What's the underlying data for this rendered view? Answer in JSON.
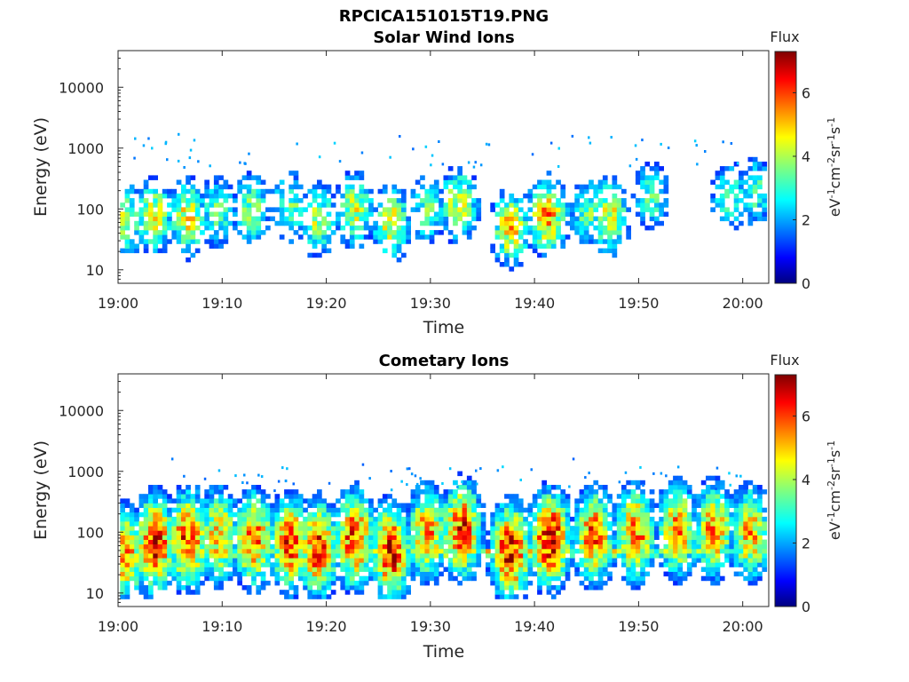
{
  "figure": {
    "title": "RPCICA151015T19.PNG"
  },
  "chart_data": [
    {
      "type": "heatmap",
      "title": "Solar Wind Ions",
      "xlabel": "Time",
      "ylabel": "Energy (eV)",
      "y_scale": "log",
      "ylim": [
        6,
        40000
      ],
      "xlim": [
        "19:00",
        "20:02"
      ],
      "x_ticks": [
        "19:00",
        "19:10",
        "19:20",
        "19:30",
        "19:40",
        "19:50",
        "20:00"
      ],
      "y_ticks": [
        "10",
        "100",
        "1000",
        "10000"
      ],
      "colorbar": {
        "label": "Flux",
        "units": "eV-1cm-2sr-1s-1",
        "range": [
          0,
          7.3
        ],
        "ticks": [
          "0",
          "2",
          "4",
          "6"
        ],
        "colormap": "jet"
      },
      "bursts": [
        {
          "t": 0.5,
          "e": 60,
          "level": 4.2
        },
        {
          "t": 3.2,
          "e": 70,
          "level": 4.6
        },
        {
          "t": 6.5,
          "e": 65,
          "level": 4.8
        },
        {
          "t": 9.3,
          "e": 80,
          "level": 3.6
        },
        {
          "t": 12.6,
          "e": 90,
          "level": 3.8
        },
        {
          "t": 16.3,
          "e": 100,
          "level": 3.7
        },
        {
          "t": 19.0,
          "e": 60,
          "level": 4.1
        },
        {
          "t": 22.5,
          "e": 90,
          "level": 4.4
        },
        {
          "t": 26.0,
          "e": 55,
          "level": 4.6
        },
        {
          "t": 29.5,
          "e": 90,
          "level": 3.5
        },
        {
          "t": 32.5,
          "e": 110,
          "level": 4.5
        },
        {
          "t": 37.5,
          "e": 45,
          "level": 5.0
        },
        {
          "t": 41.0,
          "e": 70,
          "level": 5.4
        },
        {
          "t": 45.0,
          "e": 80,
          "level": 3.6
        },
        {
          "t": 47.0,
          "e": 70,
          "level": 4.7
        },
        {
          "t": 51.0,
          "e": 150,
          "level": 3.4
        },
        {
          "t": 58.5,
          "e": 150,
          "level": 3.4
        },
        {
          "t": 61.0,
          "e": 180,
          "level": 3.4
        }
      ]
    },
    {
      "type": "heatmap",
      "title": "Cometary Ions",
      "xlabel": "Time",
      "ylabel": "Energy (eV)",
      "y_scale": "log",
      "ylim": [
        6,
        40000
      ],
      "xlim": [
        "19:00",
        "20:02"
      ],
      "x_ticks": [
        "19:00",
        "19:10",
        "19:20",
        "19:30",
        "19:40",
        "19:50",
        "20:00"
      ],
      "y_ticks": [
        "10",
        "100",
        "1000",
        "10000"
      ],
      "colorbar": {
        "label": "Flux",
        "units": "eV-1cm-2sr-1s-1",
        "range": [
          0,
          7.3
        ],
        "ticks": [
          "0",
          "2",
          "4",
          "6"
        ],
        "colormap": "jet"
      },
      "bursts": [
        {
          "t": 0.5,
          "e": 40,
          "level": 5.6
        },
        {
          "t": 3.3,
          "e": 60,
          "level": 6.8
        },
        {
          "t": 6.5,
          "e": 70,
          "level": 6.4
        },
        {
          "t": 9.5,
          "e": 80,
          "level": 5.3
        },
        {
          "t": 12.8,
          "e": 70,
          "level": 6.0
        },
        {
          "t": 16.3,
          "e": 60,
          "level": 6.2
        },
        {
          "t": 19.0,
          "e": 50,
          "level": 6.3
        },
        {
          "t": 22.5,
          "e": 70,
          "level": 6.4
        },
        {
          "t": 26.0,
          "e": 45,
          "level": 6.6
        },
        {
          "t": 29.5,
          "e": 90,
          "level": 5.6
        },
        {
          "t": 32.8,
          "e": 100,
          "level": 6.3
        },
        {
          "t": 37.5,
          "e": 45,
          "level": 6.8
        },
        {
          "t": 41.3,
          "e": 70,
          "level": 7.0
        },
        {
          "t": 45.5,
          "e": 80,
          "level": 6.0
        },
        {
          "t": 49.5,
          "e": 90,
          "level": 5.9
        },
        {
          "t": 53.5,
          "e": 100,
          "level": 5.5
        },
        {
          "t": 57.0,
          "e": 100,
          "level": 5.6
        },
        {
          "t": 60.5,
          "e": 90,
          "level": 5.4
        }
      ],
      "band": {
        "e": 42,
        "level": 5.8
      }
    }
  ]
}
